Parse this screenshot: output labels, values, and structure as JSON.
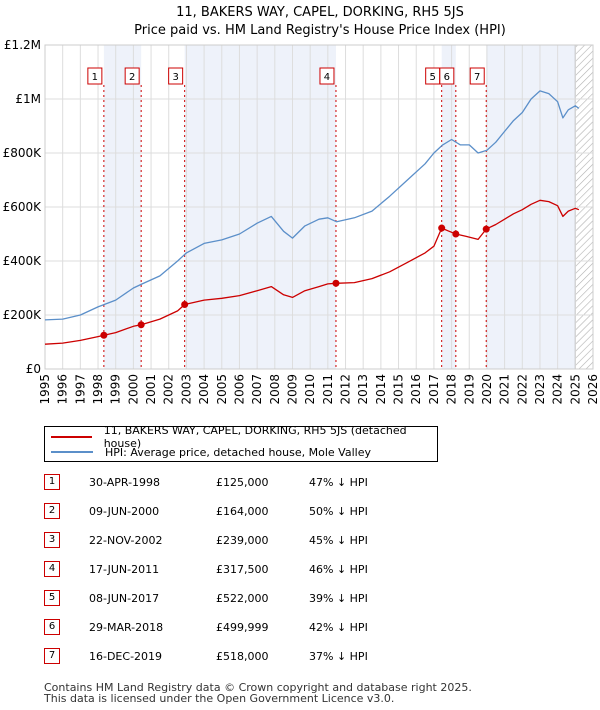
{
  "chart_data": {
    "type": "line",
    "title": "11, BAKERS WAY, CAPEL, DORKING, RH5 5JS",
    "subtitle": "Price paid vs. HM Land Registry's House Price Index (HPI)",
    "xlim": [
      1995,
      2026
    ],
    "ylim": [
      0,
      1200000
    ],
    "x_ticks": [
      1995,
      1996,
      1997,
      1998,
      1999,
      2000,
      2001,
      2002,
      2003,
      2004,
      2005,
      2006,
      2007,
      2008,
      2009,
      2010,
      2011,
      2012,
      2013,
      2014,
      2015,
      2016,
      2017,
      2018,
      2019,
      2020,
      2021,
      2022,
      2023,
      2024,
      2025,
      2026
    ],
    "y_ticks": [
      {
        "value": 0,
        "label": "£0"
      },
      {
        "value": 200000,
        "label": "£200K"
      },
      {
        "value": 400000,
        "label": "£400K"
      },
      {
        "value": 600000,
        "label": "£600K"
      },
      {
        "value": 800000,
        "label": "£800K"
      },
      {
        "value": 1000000,
        "label": "£1M"
      },
      {
        "value": 1200000,
        "label": "£1.2M"
      }
    ],
    "grid": true,
    "series": [
      {
        "name": "HPI: Average price, detached house, Mole Valley",
        "color": "#5b8fc9",
        "points": [
          [
            1995.0,
            182000
          ],
          [
            1996.0,
            185000
          ],
          [
            1997.0,
            200000
          ],
          [
            1998.0,
            230000
          ],
          [
            1999.0,
            255000
          ],
          [
            2000.0,
            300000
          ],
          [
            2000.5,
            315000
          ],
          [
            2001.5,
            345000
          ],
          [
            2002.5,
            400000
          ],
          [
            2003.0,
            430000
          ],
          [
            2004.0,
            465000
          ],
          [
            2005.0,
            478000
          ],
          [
            2006.0,
            500000
          ],
          [
            2007.0,
            540000
          ],
          [
            2007.8,
            565000
          ],
          [
            2008.5,
            510000
          ],
          [
            2009.0,
            485000
          ],
          [
            2009.7,
            530000
          ],
          [
            2010.5,
            555000
          ],
          [
            2011.0,
            560000
          ],
          [
            2011.5,
            545000
          ],
          [
            2012.5,
            560000
          ],
          [
            2013.5,
            585000
          ],
          [
            2014.5,
            640000
          ],
          [
            2015.5,
            700000
          ],
          [
            2016.5,
            760000
          ],
          [
            2017.0,
            800000
          ],
          [
            2017.5,
            830000
          ],
          [
            2018.0,
            850000
          ],
          [
            2018.5,
            830000
          ],
          [
            2019.0,
            830000
          ],
          [
            2019.5,
            800000
          ],
          [
            2020.0,
            810000
          ],
          [
            2020.5,
            840000
          ],
          [
            2021.0,
            880000
          ],
          [
            2021.5,
            920000
          ],
          [
            2022.0,
            950000
          ],
          [
            2022.5,
            1000000
          ],
          [
            2023.0,
            1030000
          ],
          [
            2023.5,
            1020000
          ],
          [
            2024.0,
            990000
          ],
          [
            2024.3,
            930000
          ],
          [
            2024.6,
            960000
          ],
          [
            2025.0,
            975000
          ],
          [
            2025.2,
            965000
          ]
        ]
      },
      {
        "name": "11, BAKERS WAY, CAPEL, DORKING, RH5 5JS (detached house)",
        "color": "#cc0000",
        "points": [
          [
            1995.0,
            92000
          ],
          [
            1996.0,
            96000
          ],
          [
            1997.0,
            106000
          ],
          [
            1998.0,
            120000
          ],
          [
            1998.33,
            125000
          ],
          [
            1999.0,
            135000
          ],
          [
            2000.0,
            158000
          ],
          [
            2000.44,
            164000
          ],
          [
            2001.5,
            185000
          ],
          [
            2002.5,
            215000
          ],
          [
            2002.9,
            239000
          ],
          [
            2004.0,
            255000
          ],
          [
            2005.0,
            262000
          ],
          [
            2006.0,
            272000
          ],
          [
            2007.0,
            290000
          ],
          [
            2007.8,
            305000
          ],
          [
            2008.5,
            275000
          ],
          [
            2009.0,
            265000
          ],
          [
            2009.7,
            290000
          ],
          [
            2010.5,
            305000
          ],
          [
            2011.0,
            315000
          ],
          [
            2011.46,
            317500
          ],
          [
            2012.5,
            320000
          ],
          [
            2013.5,
            335000
          ],
          [
            2014.5,
            360000
          ],
          [
            2015.5,
            395000
          ],
          [
            2016.5,
            430000
          ],
          [
            2017.0,
            455000
          ],
          [
            2017.44,
            522000
          ],
          [
            2017.8,
            512000
          ],
          [
            2018.24,
            499999
          ],
          [
            2018.8,
            492000
          ],
          [
            2019.5,
            480000
          ],
          [
            2019.96,
            518000
          ],
          [
            2020.5,
            535000
          ],
          [
            2021.0,
            555000
          ],
          [
            2021.5,
            575000
          ],
          [
            2022.0,
            590000
          ],
          [
            2022.5,
            610000
          ],
          [
            2023.0,
            625000
          ],
          [
            2023.5,
            620000
          ],
          [
            2024.0,
            605000
          ],
          [
            2024.3,
            565000
          ],
          [
            2024.6,
            585000
          ],
          [
            2025.0,
            595000
          ],
          [
            2025.2,
            590000
          ]
        ]
      }
    ],
    "sales": [
      {
        "label": "1",
        "date": "30-APR-1998",
        "x": 1998.33,
        "price": 125000,
        "price_label": "£125,000",
        "hpi_label": "47% ↓ HPI"
      },
      {
        "label": "2",
        "date": "09-JUN-2000",
        "x": 2000.44,
        "price": 164000,
        "price_label": "£164,000",
        "hpi_label": "50% ↓ HPI"
      },
      {
        "label": "3",
        "date": "22-NOV-2002",
        "x": 2002.9,
        "price": 239000,
        "price_label": "£239,000",
        "hpi_label": "45% ↓ HPI"
      },
      {
        "label": "4",
        "date": "17-JUN-2011",
        "x": 2011.46,
        "price": 317500,
        "price_label": "£317,500",
        "hpi_label": "46% ↓ HPI"
      },
      {
        "label": "5",
        "date": "08-JUN-2017",
        "x": 2017.44,
        "price": 522000,
        "price_label": "£522,000",
        "hpi_label": "39% ↓ HPI"
      },
      {
        "label": "6",
        "date": "29-MAR-2018",
        "x": 2018.24,
        "price": 499999,
        "price_label": "£499,999",
        "hpi_label": "42% ↓ HPI"
      },
      {
        "label": "7",
        "date": "16-DEC-2019",
        "x": 2019.96,
        "price": 518000,
        "price_label": "£518,000",
        "hpi_label": "37% ↓ HPI"
      }
    ],
    "hatched_from": 2025.0,
    "colors": {
      "price_line": "#cc0000",
      "hpi_line": "#5b8fc9",
      "highlight": "#eef2fa",
      "hatch": "#b0b0b0"
    }
  },
  "legend": {
    "price_label": "11, BAKERS WAY, CAPEL, DORKING, RH5 5JS (detached house)",
    "hpi_label": "HPI: Average price, detached house, Mole Valley"
  },
  "footer": {
    "line1": "Contains HM Land Registry data © Crown copyright and database right 2025.",
    "line2": "This data is licensed under the Open Government Licence v3.0."
  }
}
